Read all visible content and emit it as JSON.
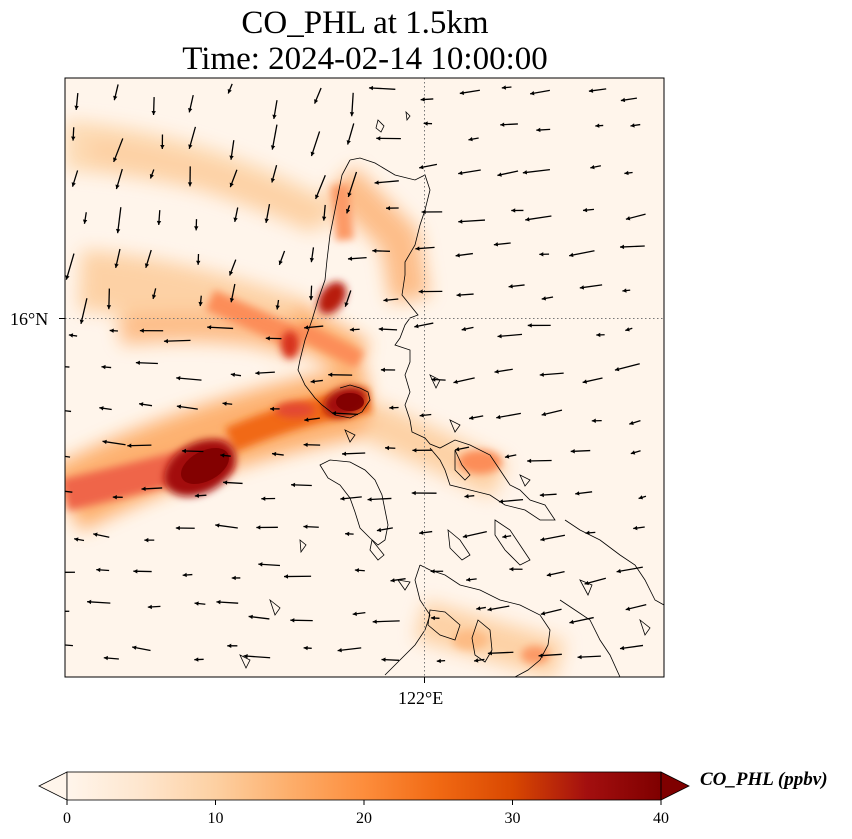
{
  "title": {
    "line1": "CO_PHL at 1.5km",
    "line2": "Time: 2024-02-14 10:00:00"
  },
  "axes": {
    "lat_label": "16°N",
    "lon_label": "122°E"
  },
  "colorbar": {
    "label": "CO_PHL (ppbv)",
    "ticks": [
      "0",
      "10",
      "20",
      "30",
      "40"
    ],
    "min": 0,
    "max": 40,
    "colormap": [
      "#fff5eb",
      "#fee6ce",
      "#fdd0a2",
      "#fdae6b",
      "#fd8d3c",
      "#f16913",
      "#d94801",
      "#a63603",
      "#7f2704"
    ]
  },
  "field": {
    "description_units": "ppbv"
  }
}
